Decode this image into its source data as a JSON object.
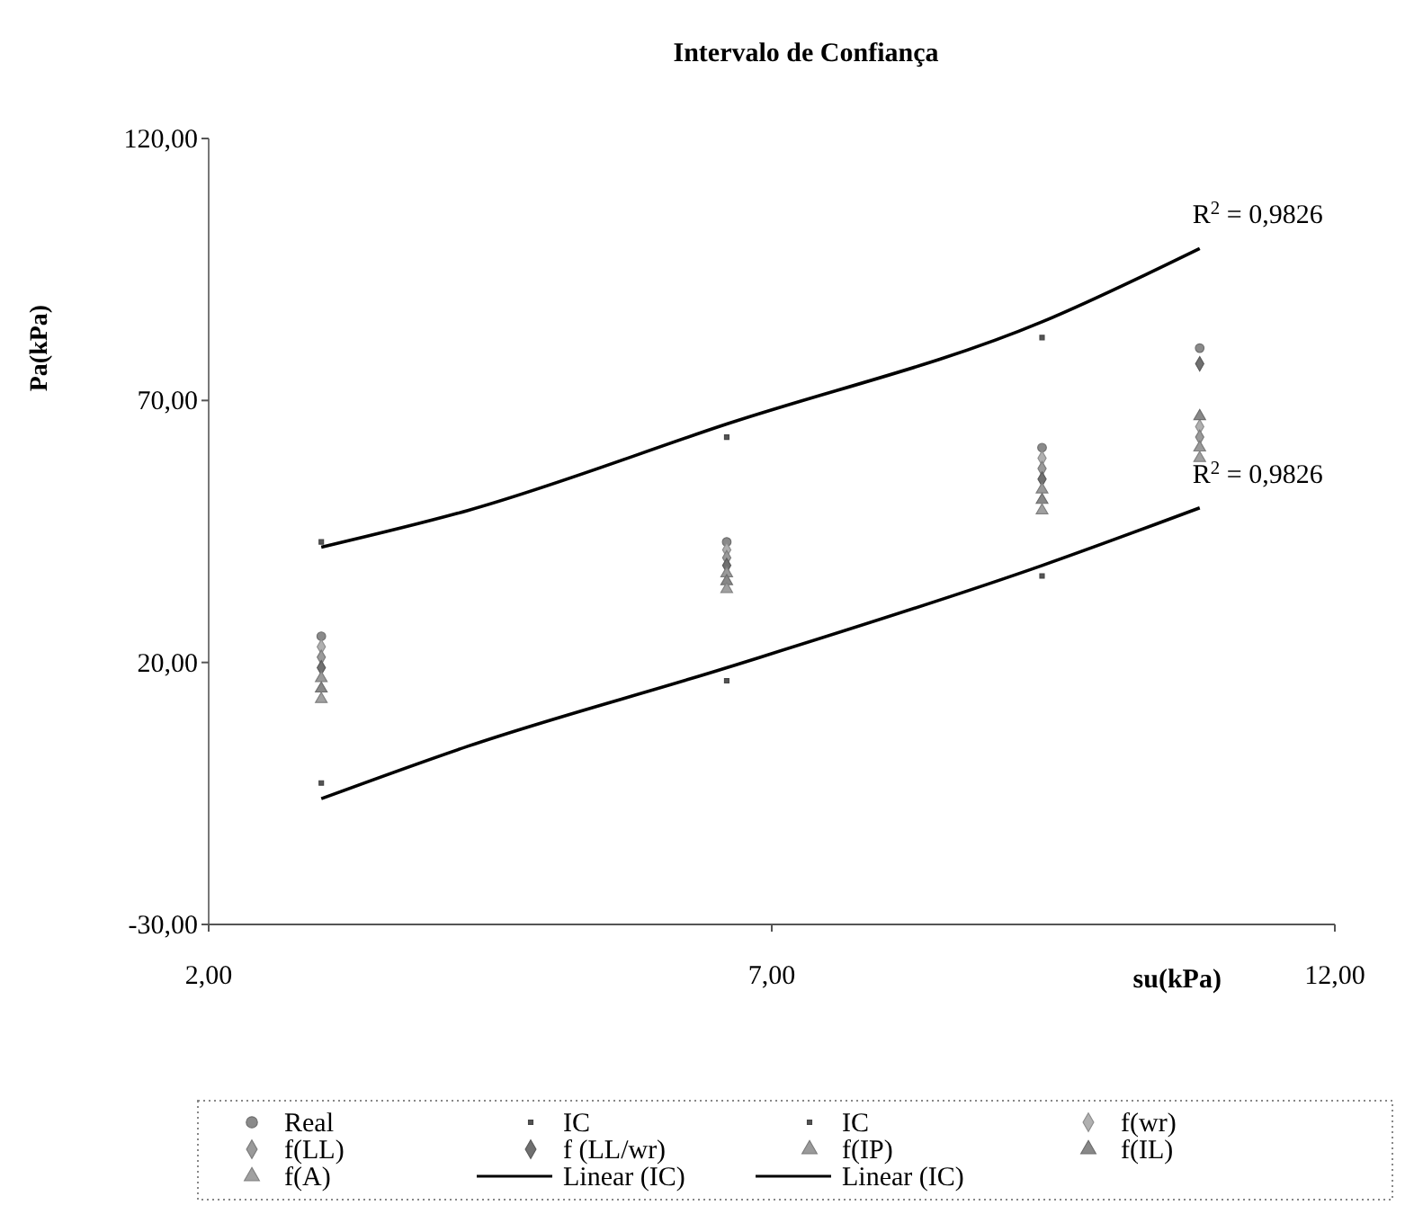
{
  "chart_data": {
    "type": "scatter",
    "title": "Intervalo de Confiança",
    "xlabel": "su(kPa)",
    "ylabel": "Pa(kPa)",
    "xlim": [
      2,
      12
    ],
    "xticks": [
      {
        "value": 2,
        "label": "2,00"
      },
      {
        "value": 7,
        "label": "7,00"
      },
      {
        "value": 12,
        "label": "12,00"
      }
    ],
    "ylim": [
      -30,
      120
    ],
    "yticks": [
      {
        "value": -30,
        "label": "-30,00"
      },
      {
        "value": 20,
        "label": "20,00"
      },
      {
        "value": 70,
        "label": "70,00"
      },
      {
        "value": 120,
        "label": "120,00"
      }
    ],
    "grid": false,
    "legend": "bottom",
    "annotations": [
      {
        "text": "R$^{2}$ = 0,9826",
        "x": 10.8,
        "y": 99
      },
      {
        "text": "R$^{2}$ = 0,9826",
        "x": 10.8,
        "y": 49.5
      }
    ],
    "series": [
      {
        "name": "Real",
        "color": "#8a8a8a",
        "marker": "circle",
        "x": [
          3,
          6.6,
          9.4,
          10.8
        ],
        "values": [
          25,
          43,
          61,
          80
        ]
      },
      {
        "name": "IC",
        "color": "#555555",
        "marker": "square",
        "x": [
          3,
          6.6,
          9.4
        ],
        "values": [
          43,
          63,
          82
        ]
      },
      {
        "name": "IC",
        "color": "#555555",
        "marker": "square",
        "x": [
          3,
          6.6,
          9.4
        ],
        "values": [
          -3,
          16.5,
          36.5
        ]
      },
      {
        "name": "f(wr)",
        "color": "#b0b0b0",
        "marker": "diamond",
        "x": [
          3,
          6.6,
          9.4,
          10.8
        ],
        "values": [
          23,
          41.5,
          59,
          65
        ]
      },
      {
        "name": "f(LL)",
        "color": "#9a9a9a",
        "marker": "diamond",
        "x": [
          3,
          6.6,
          9.4,
          10.8
        ],
        "values": [
          21,
          40,
          57,
          63
        ]
      },
      {
        "name": "f (LL/wr)",
        "color": "#707070",
        "marker": "diamond",
        "x": [
          3,
          6.6,
          9.4,
          10.8
        ],
        "values": [
          19,
          38.5,
          55,
          77
        ]
      },
      {
        "name": "f(IP)",
        "color": "#9a9a9a",
        "marker": "triangle",
        "x": [
          3,
          6.6,
          9.4,
          10.8
        ],
        "values": [
          17,
          37,
          53,
          61
        ]
      },
      {
        "name": "f(IL)",
        "color": "#888888",
        "marker": "triangle",
        "x": [
          3,
          6.6,
          9.4,
          10.8
        ],
        "values": [
          15,
          35.5,
          51,
          67
        ]
      },
      {
        "name": "f(A)",
        "color": "#a0a0a0",
        "marker": "triangle",
        "x": [
          3,
          6.6,
          9.4,
          10.8
        ],
        "values": [
          13,
          34,
          49,
          59
        ]
      },
      {
        "name": "Linear (IC)",
        "type": "line",
        "color": "#000000",
        "marker": "none",
        "x": [
          3,
          4.3,
          6.6,
          9.4,
          10.8
        ],
        "values": [
          42,
          49,
          65.5,
          85,
          99
        ]
      },
      {
        "name": "Linear (IC)",
        "type": "line",
        "color": "#000000",
        "marker": "none",
        "x": [
          3,
          4.3,
          6.6,
          9.4,
          10.8
        ],
        "values": [
          -6,
          4,
          19,
          38.5,
          49.5
        ]
      }
    ]
  }
}
